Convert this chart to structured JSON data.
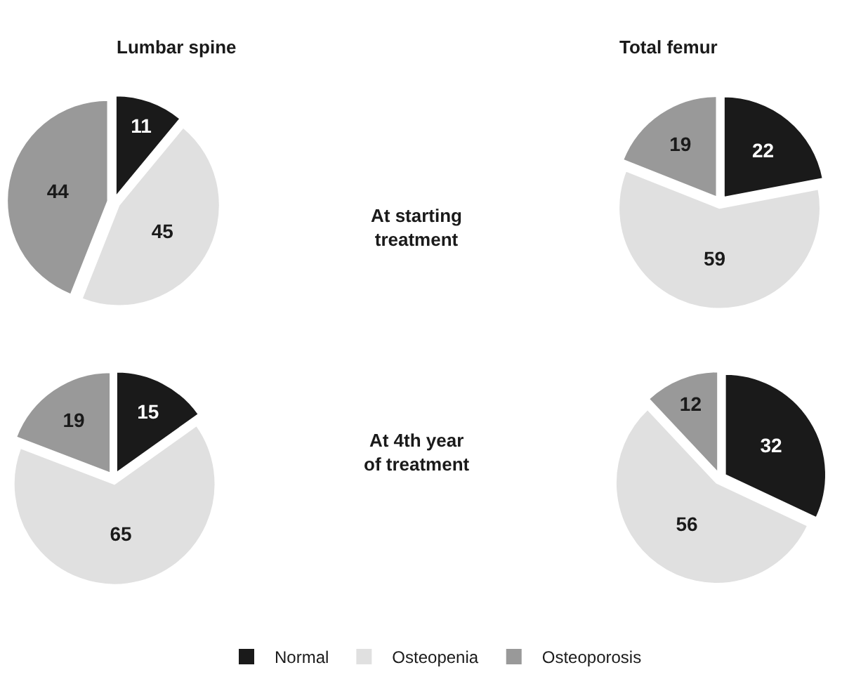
{
  "chart_data": [
    {
      "type": "pie",
      "title": "Lumbar spine",
      "categories": [
        "Normal",
        "Osteopenia",
        "Osteoporosis"
      ],
      "values": [
        11,
        45,
        44
      ],
      "colors": [
        "#1a1a1a",
        "#e0e0e0",
        "#999999"
      ],
      "data_labels": true,
      "annotations": [
        "At starting treatment"
      ],
      "legend": "bottom"
    },
    {
      "type": "pie",
      "title": "Total femur",
      "categories": [
        null,
        null,
        null
      ],
      "values": [
        22,
        59,
        19
      ],
      "colors": [
        "#1a1a1a",
        "#e0e0e0",
        "#999999"
      ],
      "data_labels": true
    },
    {
      "type": "pie",
      "categories": [
        null,
        null,
        null
      ],
      "values": [
        15,
        65,
        19
      ],
      "colors": [
        "#1a1a1a",
        "#e0e0e0",
        "#999999"
      ],
      "data_labels": true,
      "annotations": [
        "At 4th year of treatment"
      ]
    },
    {
      "type": "pie",
      "categories": [
        null,
        null,
        null
      ],
      "values": [
        32,
        56,
        12
      ],
      "colors": [
        "#1a1a1a",
        "#e0e0e0",
        "#999999"
      ],
      "data_labels": true
    }
  ]
}
